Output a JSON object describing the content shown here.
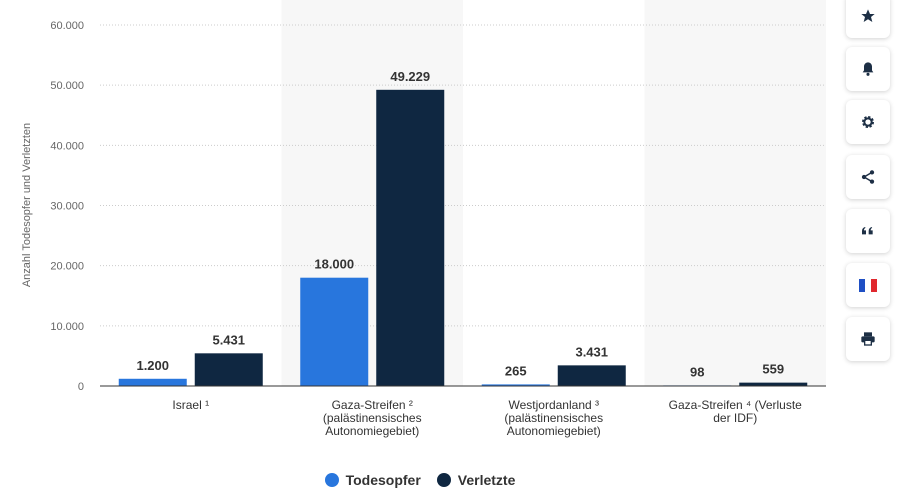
{
  "chart_data": {
    "type": "bar",
    "ylabel": "Anzahl Todesopfer und Verletzten",
    "ylim": [
      0,
      60000
    ],
    "yticks": [
      0,
      10000,
      20000,
      30000,
      40000,
      50000,
      60000
    ],
    "ytick_labels": [
      "0",
      "10.000",
      "20.000",
      "30.000",
      "40.000",
      "50.000",
      "60.000"
    ],
    "categories": [
      [
        "Israel ¹"
      ],
      [
        "Gaza-Streifen ²",
        "(palästinensisches",
        "Autonomiegebiet)"
      ],
      [
        "Westjordanland ³",
        "(palästinensisches",
        "Autonomiegebiet)"
      ],
      [
        "Gaza-Streifen ⁴ (Verluste",
        "der IDF)"
      ]
    ],
    "series": [
      {
        "name": "Todesopfer",
        "color": "#2876dd",
        "values": [
          1200,
          18000,
          265,
          98
        ],
        "labels": [
          "1.200",
          "18.000",
          "265",
          "98"
        ]
      },
      {
        "name": "Verletzte",
        "color": "#0f2741",
        "values": [
          5431,
          49229,
          3431,
          559
        ],
        "labels": [
          "5.431",
          "49.229",
          "3.431",
          "559"
        ]
      }
    ],
    "legend_position": "bottom",
    "grid": true
  },
  "sidebar": {
    "icons": [
      "star-icon",
      "bell-icon",
      "gear-icon",
      "share-icon",
      "quote-icon",
      "flag-fr-icon",
      "print-icon"
    ]
  }
}
